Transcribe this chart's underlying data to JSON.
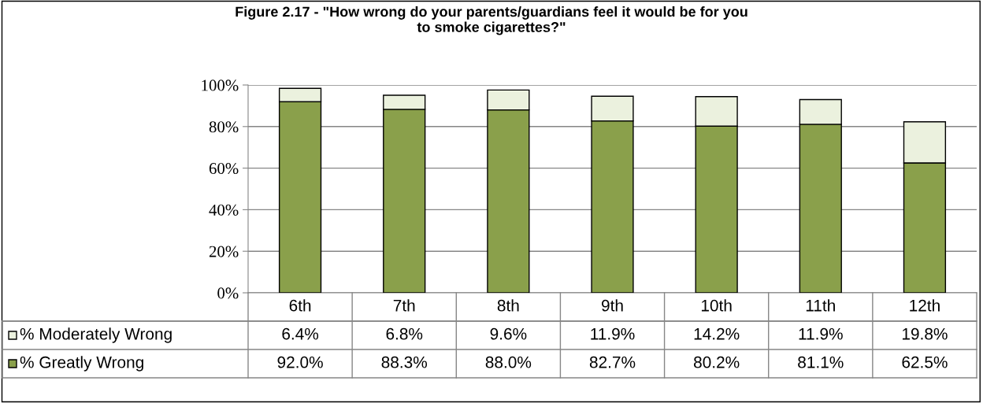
{
  "chart_data": {
    "type": "bar",
    "title": "Figure 2.17 - \"How wrong do your parents/guardians feel it would be for you\nto smoke cigarettes?\"",
    "categories": [
      "6th",
      "7th",
      "8th",
      "9th",
      "10th",
      "11th",
      "12th"
    ],
    "stacked": true,
    "series": [
      {
        "name": "% Greatly Wrong",
        "color": "#8aa04b",
        "values": [
          92.0,
          88.3,
          88.0,
          82.7,
          80.2,
          81.1,
          62.5
        ],
        "value_labels": [
          "92.0%",
          "88.3%",
          "88.0%",
          "82.7%",
          "80.2%",
          "81.1%",
          "62.5%"
        ]
      },
      {
        "name": "% Moderately Wrong",
        "color": "#ebf1de",
        "values": [
          6.4,
          6.8,
          9.6,
          11.9,
          14.2,
          11.9,
          19.8
        ],
        "value_labels": [
          "6.4%",
          "6.8%",
          "9.6%",
          "11.9%",
          "14.2%",
          "11.9%",
          "19.8%"
        ]
      }
    ],
    "ylim": [
      0,
      100
    ],
    "yticks": [
      {
        "value": 0,
        "label": "0%"
      },
      {
        "value": 20,
        "label": "20%"
      },
      {
        "value": 40,
        "label": "40%"
      },
      {
        "value": 60,
        "label": "60%"
      },
      {
        "value": 80,
        "label": "80%"
      },
      {
        "value": 100,
        "label": "100%"
      }
    ],
    "grid": "y",
    "legend": "bottom left"
  }
}
